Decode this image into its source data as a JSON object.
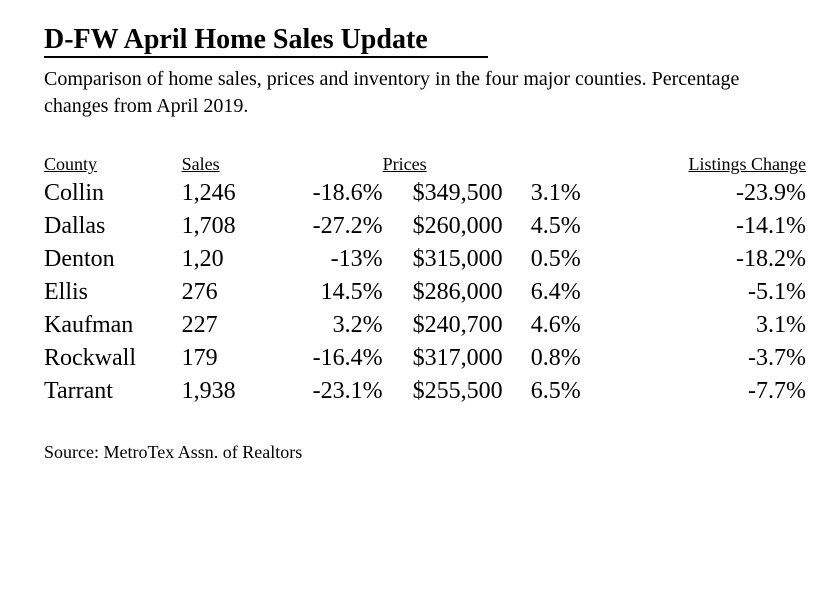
{
  "title": "D-FW April Home Sales Update",
  "subtitle": "Comparison of home sales, prices and inventory in the four major counties. Percentage changes from April 2019.",
  "columns": {
    "county": "County",
    "sales": "Sales",
    "prices": "Prices",
    "listings": "Listings Change"
  },
  "rows": [
    {
      "county": "Collin",
      "sales": "1,246",
      "sales_chg": "-18.6%",
      "price": "$349,500",
      "price_chg": "3.1%",
      "listings_chg": "-23.9%"
    },
    {
      "county": "Dallas",
      "sales": "1,708",
      "sales_chg": "-27.2%",
      "price": "$260,000",
      "price_chg": "4.5%",
      "listings_chg": "-14.1%"
    },
    {
      "county": "Denton",
      "sales": "1,20",
      "sales_chg": "-13%",
      "price": "$315,000",
      "price_chg": "0.5%",
      "listings_chg": "-18.2%"
    },
    {
      "county": "Ellis",
      "sales": "276",
      "sales_chg": "14.5%",
      "price": "$286,000",
      "price_chg": "6.4%",
      "listings_chg": "-5.1%"
    },
    {
      "county": "Kaufman",
      "sales": "227",
      "sales_chg": "3.2%",
      "price": "$240,700",
      "price_chg": "4.6%",
      "listings_chg": "3.1%"
    },
    {
      "county": "Rockwall",
      "sales": "179",
      "sales_chg": "-16.4%",
      "price": "$317,000",
      "price_chg": "0.8%",
      "listings_chg": "-3.7%"
    },
    {
      "county": "Tarrant",
      "sales": "1,938",
      "sales_chg": "-23.1%",
      "price": "$255,500",
      "price_chg": "6.5%",
      "listings_chg": "-7.7%"
    }
  ],
  "source": "Source: MetroTex Assn. of Realtors",
  "style": {
    "background_color": "#ffffff",
    "text_color": "#000000",
    "title_fontsize": 28,
    "subtitle_fontsize": 20,
    "header_fontsize": 18,
    "cell_fontsize": 24,
    "source_fontsize": 18,
    "font_family": "Georgia, 'Times New Roman', serif",
    "title_underline_width": 2
  }
}
